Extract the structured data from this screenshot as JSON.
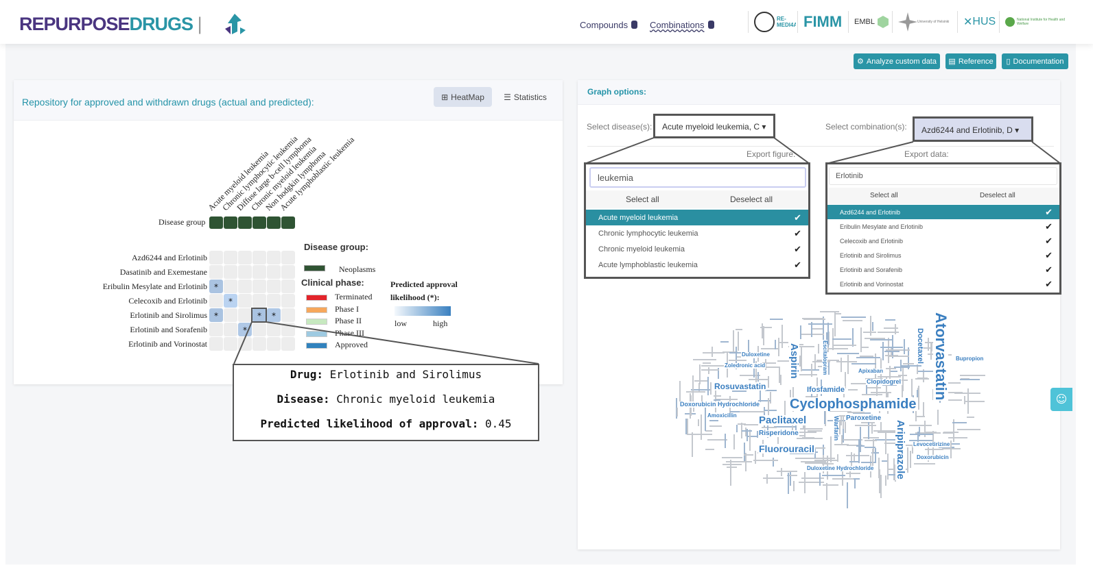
{
  "header": {
    "logo": {
      "part1": "REPURPOSE",
      "part2": "DRUGS"
    },
    "nav": [
      {
        "label": "Compounds",
        "icon": "database-icon"
      },
      {
        "label": "Combinations",
        "icon": "database-icon"
      }
    ],
    "partners": [
      "RE-MEDI4ALL",
      "FIMM",
      "EMBL",
      "University of Helsinki",
      "HUS",
      "National Institute for Health and Welfare"
    ]
  },
  "toolbar": {
    "analyze": "Analyze custom data",
    "reference": "Reference",
    "documentation": "Documentation"
  },
  "left_panel": {
    "title": "Repository for approved and withdrawn drugs (actual and predicted):",
    "tabs": [
      {
        "label": "HeatMap",
        "icon": "table-icon",
        "active": true
      },
      {
        "label": "Statistics",
        "icon": "bars-icon",
        "active": false
      }
    ],
    "heatmap": {
      "columns": [
        "Acute myeloid leukemia",
        "Chronic lymphocytic leukemia",
        "Diffuse large b-cell lymphoma",
        "Chronic myeloid leukemia",
        "Non hodgkin lymphoma",
        "Acute lymphoblastic leukemia"
      ],
      "rows": [
        "Azd6244 and Erlotinib",
        "Dasatinib and Exemestane",
        "Eribulin Mesylate and Erlotinib",
        "Celecoxib and Erlotinib",
        "Erlotinib and Sirolimus",
        "Erlotinib and Sorafenib",
        "Erlotinib and Vorinostat"
      ],
      "disease_group_label": "Disease group",
      "marked_symbol": "*",
      "predicted_cells": [
        {
          "row": 2,
          "col": 0,
          "likelihood": 0.45
        },
        {
          "row": 3,
          "col": 1,
          "likelihood": 0.3
        },
        {
          "row": 4,
          "col": 0,
          "likelihood": 0.45
        },
        {
          "row": 4,
          "col": 3,
          "likelihood": 0.45,
          "highlighted": true
        },
        {
          "row": 4,
          "col": 4,
          "likelihood": 0.4
        },
        {
          "row": 5,
          "col": 2,
          "likelihood": 0.4
        }
      ]
    },
    "legend": {
      "disease_group_title": "Disease group:",
      "disease_groups": [
        {
          "label": "Neoplasms",
          "color": "#2f5433"
        }
      ],
      "clinical_phase_title": "Clinical phase:",
      "phases": [
        {
          "label": "Terminated",
          "color": "#e3242b"
        },
        {
          "label": "Phase I",
          "color": "#f6a75c"
        },
        {
          "label": "Phase II",
          "color": "#c7e9c0"
        },
        {
          "label": "Phase III",
          "color": "#9ecae1"
        },
        {
          "label": "Approved",
          "color": "#3182bd"
        }
      ],
      "likelihood_title": "Predicted approval",
      "likelihood_title2": "likelihood (*):",
      "low": "low",
      "high": "high"
    },
    "tooltip": {
      "drug_label": "Drug:",
      "drug": "Erlotinib and Sirolimus",
      "disease_label": "Disease:",
      "disease": "Chronic myeloid leukemia",
      "likelihood_label": "Predicted likelihood of approval:",
      "likelihood": "0.45"
    }
  },
  "right_panel": {
    "title": "Graph options:",
    "disease_select": {
      "label": "Select disease(s):",
      "value": "Acute myeloid leukemia, C"
    },
    "combination_select": {
      "label": "Select combination(s):",
      "value": "Azd6244 and Erlotinib, D"
    },
    "export_figure": "Export figure:",
    "export_data": "Export data:",
    "disease_dropdown": {
      "search": "leukemia",
      "select_all": "Select all",
      "deselect_all": "Deselect all",
      "items": [
        {
          "label": "Acute myeloid leukemia",
          "selected": true
        },
        {
          "label": "Chronic lymphocytic leukemia",
          "selected": false
        },
        {
          "label": "Chronic myeloid leukemia",
          "selected": false
        },
        {
          "label": "Acute lymphoblastic leukemia",
          "selected": false
        }
      ]
    },
    "combination_dropdown": {
      "search": "Erlotinib",
      "select_all": "Select all",
      "deselect_all": "Deselect all",
      "items": [
        {
          "label": "Azd6244 and Erlotinib",
          "selected": true
        },
        {
          "label": "Eribulin Mesylate and Erlotinib",
          "selected": false
        },
        {
          "label": "Celecoxib and Erlotinib",
          "selected": false
        },
        {
          "label": "Erlotinib and Sirolimus",
          "selected": false
        },
        {
          "label": "Erlotinib and Sorafenib",
          "selected": false
        },
        {
          "label": "Erlotinib and Vorinostat",
          "selected": false
        }
      ]
    },
    "check_glyph": "✔",
    "wordcloud": {
      "color": "#3b7fc0",
      "words": [
        "Atorvastatin",
        "Cyclophosphamide",
        "Aripiprazole",
        "Aspirin",
        "Docetaxel",
        "Rosuvastatin",
        "Paclitaxel",
        "Fluorouracil",
        "Ifosfamide",
        "Paroxetine",
        "Risperidone",
        "Doxorubicin Hydrochloride",
        "Warfarin",
        "Duloxetine Hydrochloride",
        "Clopidogrel",
        "Apixaban",
        "Escitalopram",
        "Zoledronic acid",
        "Amoxicillin",
        "Duloxetine",
        "Levocetirizine",
        "Doxorubicin",
        "Bupropion"
      ]
    }
  },
  "chat_icon": "chat-icon"
}
